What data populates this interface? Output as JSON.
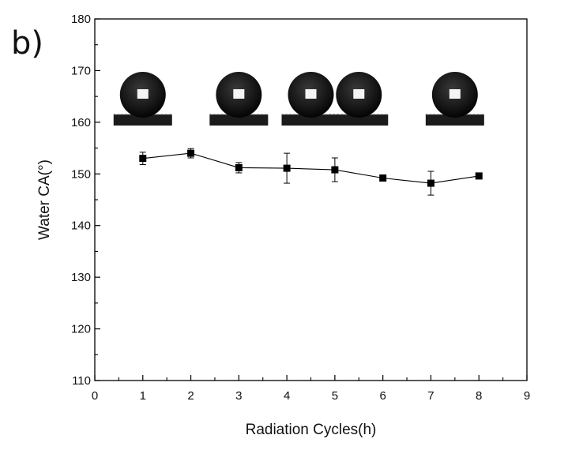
{
  "panel_label": "b)",
  "chart_data": {
    "type": "scatter",
    "title": "",
    "xlabel": "Radiation Cycles(h)",
    "ylabel": "Water CA(°)",
    "xlim": [
      0,
      9
    ],
    "ylim": [
      110,
      180
    ],
    "x_ticks": [
      "0",
      "1",
      "2",
      "3",
      "4",
      "5",
      "6",
      "7",
      "8",
      "9"
    ],
    "y_ticks": [
      "110",
      "120",
      "130",
      "140",
      "150",
      "160",
      "170",
      "180"
    ],
    "grid": false,
    "connected": true,
    "marker": "square",
    "series": [
      {
        "x": [
          1,
          2,
          3,
          4,
          5,
          6,
          7,
          8
        ],
        "y": [
          153.0,
          154.0,
          151.2,
          151.1,
          150.8,
          149.2,
          148.2,
          149.6
        ],
        "error": [
          1.2,
          0.9,
          1.0,
          2.9,
          2.3,
          0.5,
          2.3,
          0.4
        ]
      }
    ],
    "droplet_images_at_x": [
      1,
      3,
      4.5,
      5.5,
      7.5
    ]
  }
}
